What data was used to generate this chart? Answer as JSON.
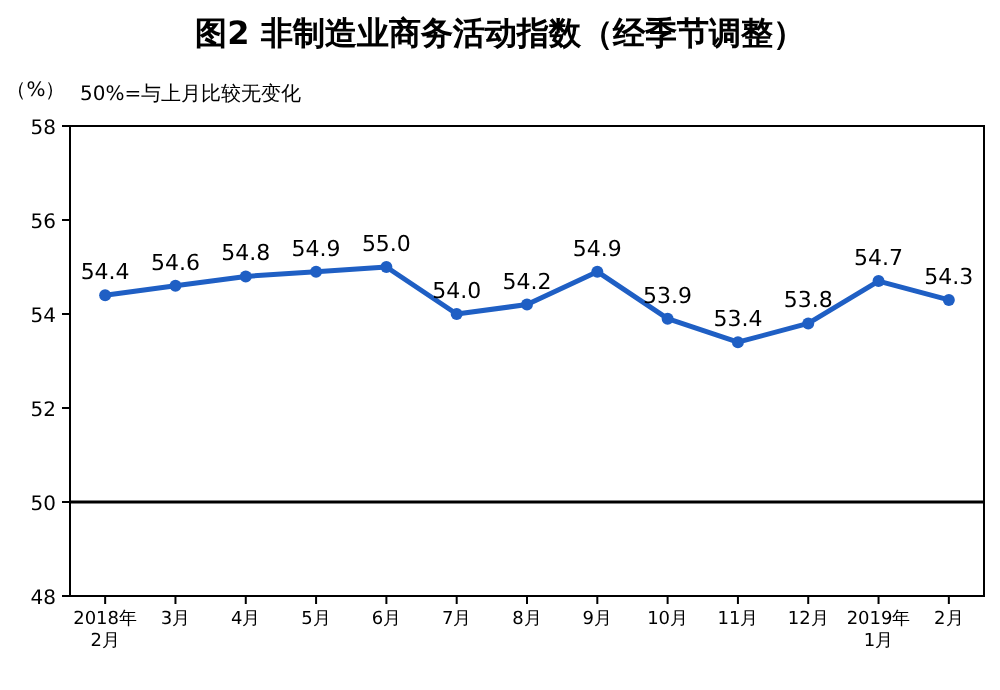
{
  "chart_data": {
    "type": "line",
    "title": "图2  非制造业商务活动指数（经季节调整）",
    "ylabel": "（%）",
    "annotations": [
      "50%=与上月比较无变化"
    ],
    "categories": [
      "2018年\n2月",
      "3月",
      "4月",
      "5月",
      "6月",
      "7月",
      "8月",
      "9月",
      "10月",
      "11月",
      "12月",
      "2019年\n1月",
      "2月"
    ],
    "series": [
      {
        "color": "#1f5fc4",
        "values": [
          54.4,
          54.6,
          54.8,
          54.9,
          55.0,
          54.0,
          54.2,
          54.9,
          53.9,
          53.4,
          53.8,
          54.7,
          54.3
        ],
        "value_labels": [
          "54.4",
          "54.6",
          "54.8",
          "54.9",
          "55.0",
          "54.0",
          "54.2",
          "54.9",
          "53.9",
          "53.4",
          "53.8",
          "54.7",
          "54.3"
        ]
      }
    ],
    "ylim": [
      48,
      58
    ],
    "yticks": [
      48,
      50,
      52,
      54,
      56,
      58
    ],
    "ref_lines": [
      {
        "axis": "y",
        "value": 50,
        "color": "#000000"
      }
    ],
    "marker": "circle",
    "line_style": "solid"
  }
}
